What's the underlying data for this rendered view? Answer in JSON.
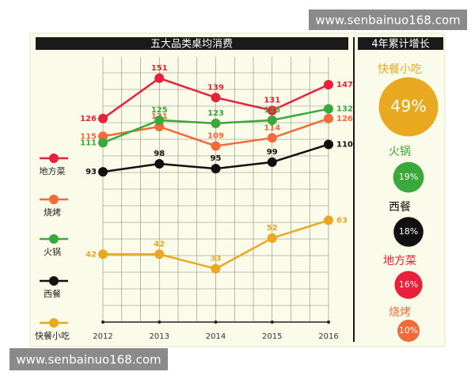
{
  "watermark": "www.senbainuo168.com",
  "chart_data": [
    {
      "type": "line",
      "title": "五大品类桌均消费",
      "categories": [
        "2012",
        "2013",
        "2014",
        "2015",
        "2016"
      ],
      "series": [
        {
          "name": "地方菜",
          "color": "#e8213a",
          "values": [
            126,
            151,
            139,
            131,
            147
          ]
        },
        {
          "name": "烧烤",
          "color": "#f26a3a",
          "values": [
            115,
            121,
            109,
            114,
            126
          ]
        },
        {
          "name": "火锅",
          "color": "#3aa83a",
          "values": [
            111,
            125,
            123,
            125,
            132
          ]
        },
        {
          "name": "西餐",
          "color": "#111111",
          "values": [
            93,
            98,
            95,
            99,
            110
          ]
        },
        {
          "name": "快餐小吃",
          "color": "#e8a820",
          "values": [
            42,
            42,
            33,
            52,
            63
          ]
        }
      ],
      "ylim": [
        0,
        170
      ],
      "grid": true
    },
    {
      "type": "bubble",
      "title": "4年累计增长",
      "categories": [
        "快餐小吃",
        "火锅",
        "西餐",
        "地方菜",
        "烧烤"
      ],
      "values": [
        49,
        19,
        18,
        16,
        10
      ],
      "value_labels": [
        "49%",
        "19%",
        "18%",
        "16%",
        "10%"
      ],
      "colors": [
        "#e8a820",
        "#3aa83a",
        "#111111",
        "#e8213a",
        "#f26a3a"
      ]
    }
  ]
}
